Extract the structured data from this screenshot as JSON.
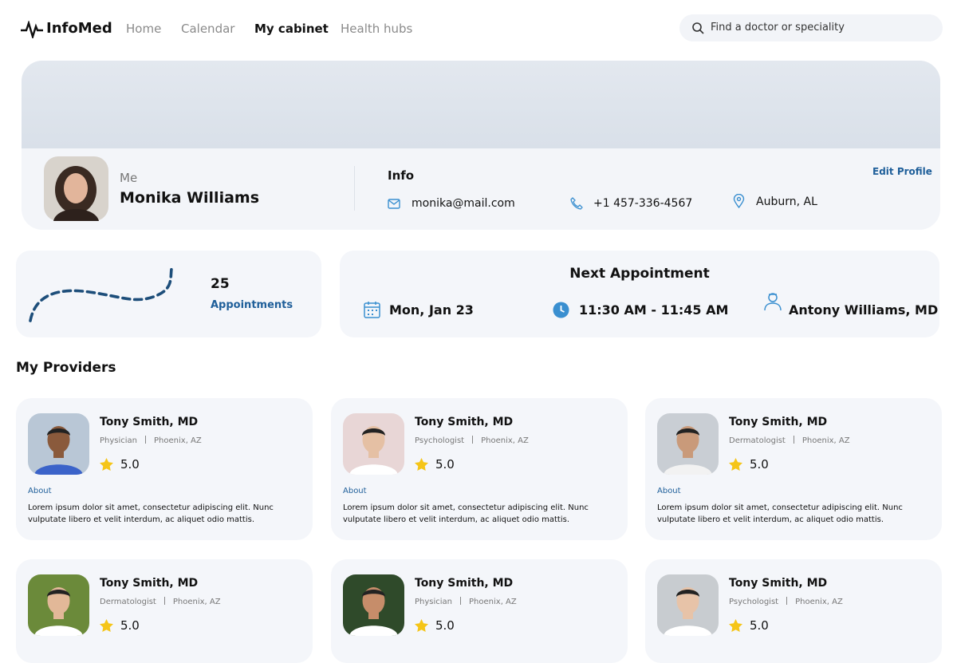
{
  "nav": {
    "brand": "InfoMed",
    "links": [
      "Home",
      "Calendar",
      "My cabinet",
      "Health hubs"
    ],
    "active": 2,
    "search_placeholder": "Find a doctor or speciality"
  },
  "profile": {
    "greeting": "Me",
    "name": "Monika Williams",
    "info_title": "Info",
    "email": "monika@mail.com",
    "phone": "+1 457-336-4567",
    "location": "Auburn, AL",
    "edit": "Edit Profile"
  },
  "stats": {
    "count": 25,
    "label": "Appointments"
  },
  "next_appointment": {
    "title": "Next Appointment",
    "date": "Mon, Jan 23",
    "time": "11:30 AM - 11:45 AM",
    "doctor": "Antony Williams, MD"
  },
  "providers": {
    "title": "My Providers",
    "items": [
      {
        "name": "Tony Smith, MD",
        "specialty": "Physician",
        "location": "Phoenix, AZ",
        "rating": "5.0",
        "about_heading": "About",
        "about": "Lorem ipsum dolor sit amet, consectetur adipiscing elit. Nunc vulputate libero et velit interdum, ac aliquet odio mattis."
      },
      {
        "name": "Tony Smith, MD",
        "specialty": "Psychologist",
        "location": "Phoenix, AZ",
        "rating": "5.0",
        "about_heading": "About",
        "about": "Lorem ipsum dolor sit amet, consectetur adipiscing elit. Nunc vulputate libero et velit interdum, ac aliquet odio mattis."
      },
      {
        "name": "Tony Smith, MD",
        "specialty": "Dermatologist",
        "location": "Phoenix, AZ",
        "rating": "5.0",
        "about_heading": "About",
        "about": "Lorem ipsum dolor sit amet, consectetur adipiscing elit. Nunc vulputate libero et velit interdum, ac aliquet odio mattis."
      },
      {
        "name": "Tony Smith, MD",
        "specialty": "Dermatologist",
        "location": "Phoenix, AZ",
        "rating": "5.0"
      },
      {
        "name": "Tony Smith, MD",
        "specialty": "Physician",
        "location": "Phoenix, AZ",
        "rating": "5.0"
      },
      {
        "name": "Tony Smith, MD",
        "specialty": "Psychologist",
        "location": "Phoenix, AZ",
        "rating": "5.0"
      }
    ]
  }
}
